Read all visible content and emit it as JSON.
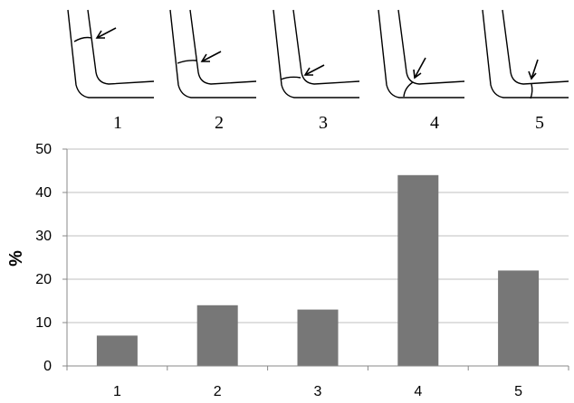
{
  "diagram_labels": [
    "1",
    "2",
    "3",
    "4",
    "5"
  ],
  "chart_data": {
    "type": "bar",
    "categories": [
      "1",
      "2",
      "3",
      "4",
      "5"
    ],
    "values": [
      7,
      14,
      13,
      44,
      22
    ],
    "title": "",
    "xlabel": "",
    "ylabel": "%",
    "ylim": [
      0,
      50
    ],
    "yticks": [
      0,
      10,
      20,
      30,
      40,
      50
    ],
    "grid": true,
    "legend": "none",
    "colors": {
      "bar": "#777777",
      "grid": "#bfbfbf",
      "axis": "#888888"
    }
  }
}
